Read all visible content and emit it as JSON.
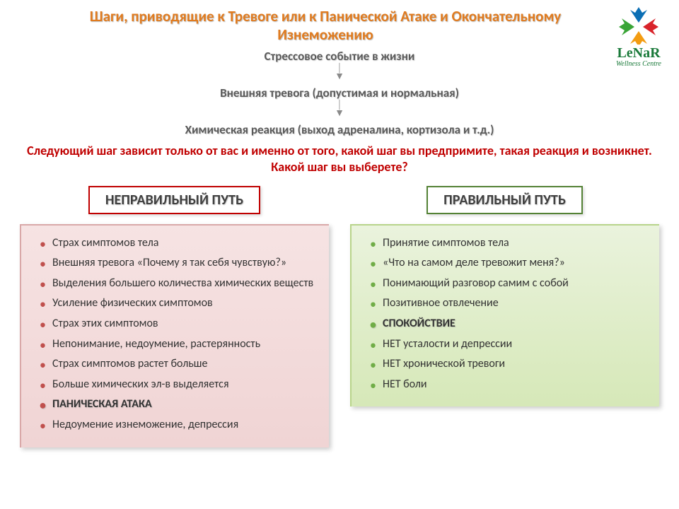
{
  "title": "Шаги, приводящие к Тревоге или к Панической Атаке и Окончательному Изнеможению",
  "steps": [
    "Стрессовое событие в жизни",
    "Внешняя тревога (допустимая и нормальная)",
    "Химическая реакция (выход адреналина, кортизола и т.д.)"
  ],
  "red_note": "Следующий шаг зависит только от вас и именно от того, какой шаг вы предпримите, такая реакция и возникнет. Какой шаг вы выберете?",
  "wrong": {
    "header": "НЕПРАВИЛЬНЫЙ ПУТЬ",
    "header_border": "#c00000",
    "box_bg_top": "#f6e3e3",
    "box_bg_bottom": "#f0d4d4",
    "bullet_color": "#c0504d",
    "items": [
      {
        "text": "Страх симптомов тела",
        "highlight": false
      },
      {
        "text": "Внешняя тревога «Почему я так себя чувствую?»",
        "highlight": false
      },
      {
        "text": "Выделения большего количества химических веществ",
        "highlight": false
      },
      {
        "text": "Усиление физических симптомов",
        "highlight": false
      },
      {
        "text": "Страх этих симптомов",
        "highlight": false
      },
      {
        "text": "Непонимание, недоумение, растерянность",
        "highlight": false
      },
      {
        "text": "Страх симптомов растет больше",
        "highlight": false
      },
      {
        "text": "Больше химических эл-в выделяется",
        "highlight": false
      },
      {
        "text": "ПАНИЧЕСКАЯ АТАКА",
        "highlight": true
      },
      {
        "text": "Недоумение изнеможение, депрессия",
        "highlight": false
      }
    ]
  },
  "right": {
    "header": "ПРАВИЛЬНЫЙ ПУТЬ",
    "header_border": "#548235",
    "box_bg_top": "#eaf3dd",
    "box_bg_bottom": "#d6e8b8",
    "bullet_color": "#70ad47",
    "items": [
      {
        "text": "Принятие симптомов тела",
        "highlight": false
      },
      {
        "text": "«Что на самом деле тревожит меня?»",
        "highlight": false
      },
      {
        "text": "Понимающий разговор самим с собой",
        "highlight": false
      },
      {
        "text": "Позитивное отвлечение",
        "highlight": false
      },
      {
        "text": "СПОКОЙСТВИЕ",
        "highlight": true
      },
      {
        "text": "НЕТ усталости и депрессии",
        "highlight": false
      },
      {
        "text": "НЕТ хронической тревоги",
        "highlight": false
      },
      {
        "text": "НЕТ боли",
        "highlight": false
      }
    ]
  },
  "logo": {
    "brand": "LeNaR",
    "sub": "Wellness Centre",
    "colors": {
      "blue": "#0b6fb5",
      "red": "#d9232a",
      "orange": "#f39c12",
      "green": "#3aa537"
    }
  },
  "colors": {
    "title": "#e07b1f",
    "step_text": "#5a5a5a",
    "red_note": "#c00000",
    "highlight": "#c00000",
    "background": "#ffffff"
  },
  "fonts": {
    "title_size": 21,
    "step_size": 17,
    "note_size": 18,
    "header_size": 20,
    "item_size": 16
  }
}
